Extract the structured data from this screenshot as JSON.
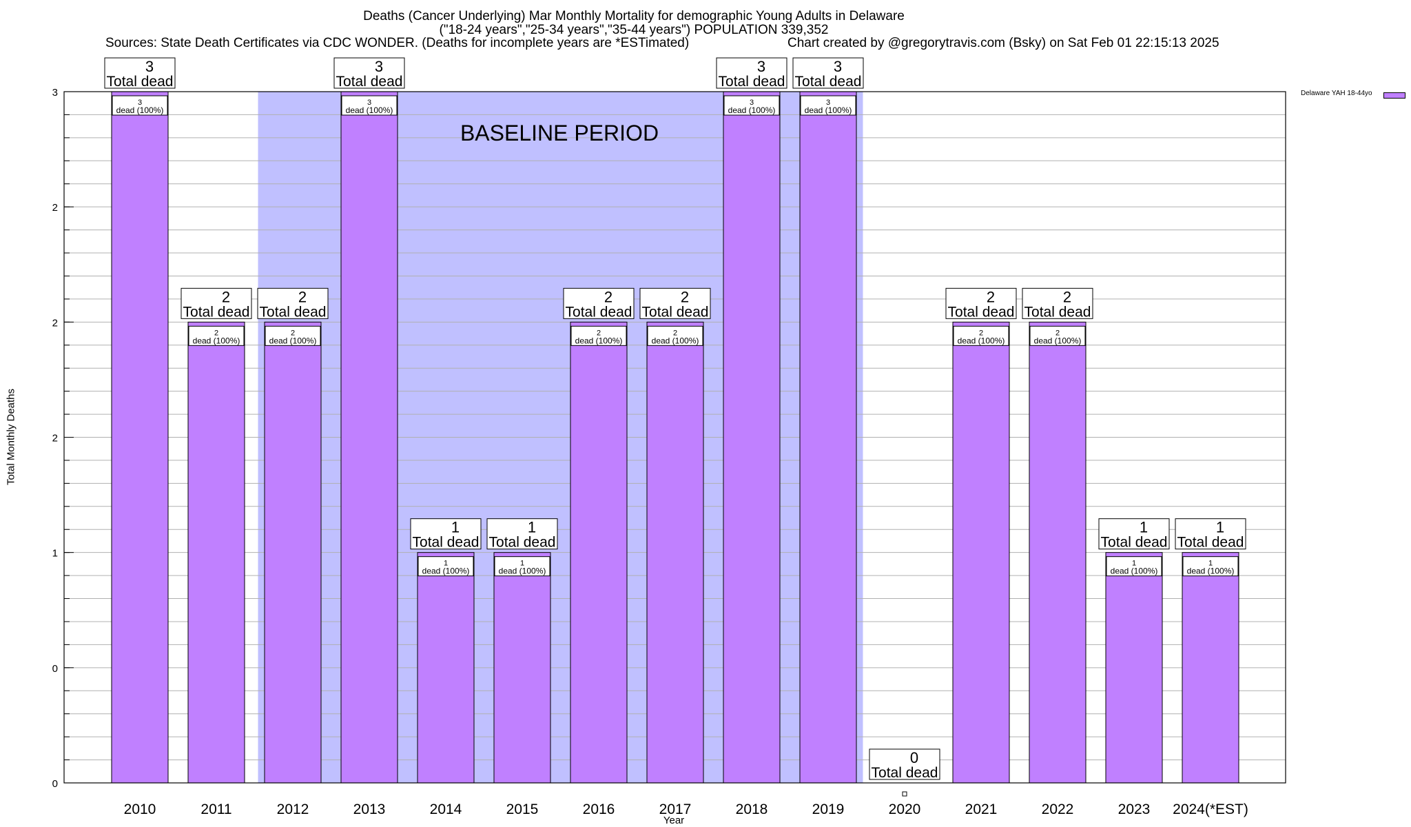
{
  "header": {
    "title_line1": "Deaths (Cancer Underlying) Mar Monthly Mortality for demographic Young Adults in Delaware",
    "title_line2": "(\"18-24 years\",\"25-34 years\",\"35-44 years\") POPULATION 339,352",
    "sources": "Sources: State Death Certificates via CDC WONDER. (Deaths for incomplete years are *ESTimated)",
    "credit": "Chart created by @gregorytravis.com (Bsky) on Sat Feb 01 22:15:13 2025"
  },
  "chart_data": {
    "type": "bar",
    "title": "Deaths (Cancer Underlying) Mar Monthly Mortality for demographic Young Adults in Delaware",
    "xlabel": "Year",
    "ylabel": "Total Monthly Deaths",
    "categories": [
      "2010",
      "2011",
      "2012",
      "2013",
      "2014",
      "2015",
      "2016",
      "2017",
      "2018",
      "2019",
      "2020",
      "2021",
      "2022",
      "2023",
      "2024(*EST)"
    ],
    "series": [
      {
        "name": "Delaware YAH 18-44yo",
        "values": [
          3,
          2,
          2,
          3,
          1,
          1,
          2,
          2,
          3,
          3,
          0,
          2,
          2,
          1,
          1
        ]
      }
    ],
    "top_labels": [
      "3",
      "2",
      "2",
      "3",
      "1",
      "1",
      "2",
      "2",
      "3",
      "3",
      "0",
      "2",
      "2",
      "1",
      "1"
    ],
    "top_label_suffix": "Total dead",
    "inner_labels": [
      "3",
      "2",
      "2",
      "3",
      "1",
      "1",
      "2",
      "2",
      "3",
      "3",
      "",
      "2",
      "2",
      "1",
      "1"
    ],
    "inner_label_suffix": "dead (100%)",
    "y_tick_labels": [
      "0",
      "0",
      "1",
      "2",
      "2",
      "2",
      "3"
    ],
    "y_ticks": [
      0,
      0.5,
      1,
      1.5,
      2,
      2.5,
      3
    ],
    "ylim": [
      0,
      3
    ],
    "baseline_period": {
      "label": "BASELINE PERIOD",
      "from": "2012",
      "to": "2019"
    },
    "legend": {
      "position": "top-right",
      "entry": "Delaware YAH 18-44yo"
    },
    "grid": true,
    "colors": {
      "bar": "#c080ff",
      "baseline": "#c0c0ff"
    }
  }
}
